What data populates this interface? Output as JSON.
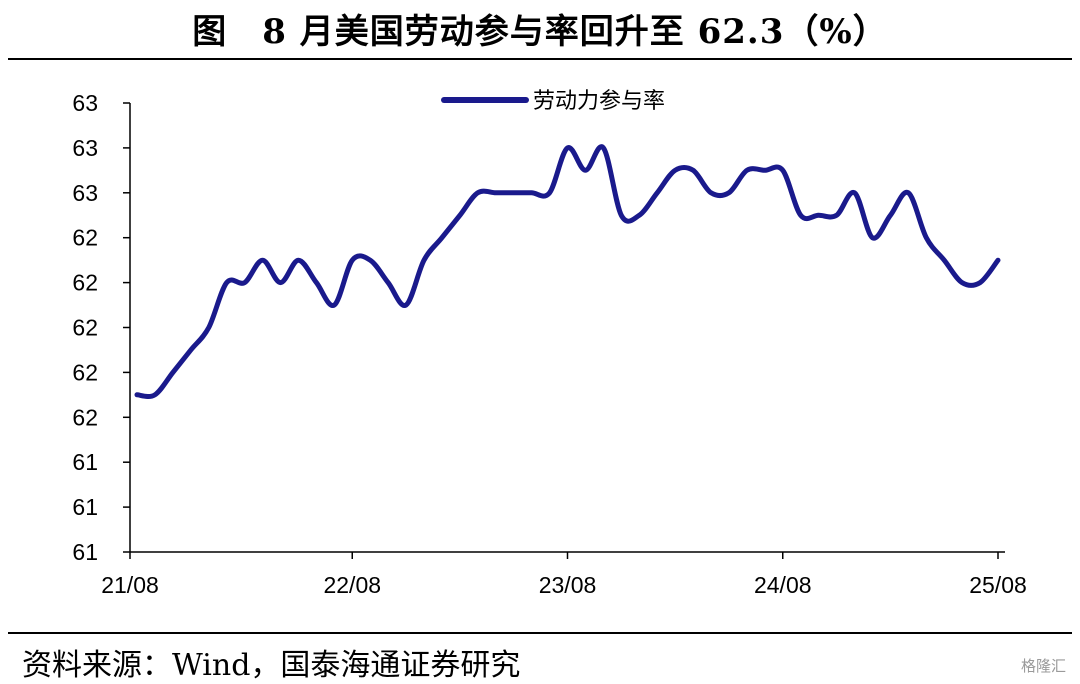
{
  "title": "图　8 月美国劳动参与率回升至 62.3（%）",
  "source": "资料来源：Wind，国泰海通证券研究",
  "watermark": "格隆汇",
  "colors": {
    "line": "#1a1a8c",
    "axis": "#000000"
  },
  "chart_data": {
    "type": "line",
    "legend_position": "top-center",
    "grid": false,
    "x_ticks": [
      "21/08",
      "22/08",
      "23/08",
      "24/08",
      "25/08"
    ],
    "y_ticks": [
      "63",
      "63",
      "63",
      "62",
      "62",
      "62",
      "62",
      "62",
      "61",
      "61",
      "61"
    ],
    "ylim": [
      61.0,
      63.0
    ],
    "series": [
      {
        "name": "劳动力参与率",
        "x": [
          "21/08",
          "21/09",
          "21/10",
          "21/11",
          "21/12",
          "22/01",
          "22/02",
          "22/03",
          "22/04",
          "22/05",
          "22/06",
          "22/07",
          "22/08",
          "22/09",
          "22/10",
          "22/11",
          "22/12",
          "23/01",
          "23/02",
          "23/03",
          "23/04",
          "23/05",
          "23/06",
          "23/07",
          "23/08",
          "23/09",
          "23/10",
          "23/11",
          "23/12",
          "24/01",
          "24/02",
          "24/03",
          "24/04",
          "24/05",
          "24/06",
          "24/07",
          "24/08",
          "24/09",
          "24/10",
          "24/11",
          "24/12",
          "25/01",
          "25/02",
          "25/03",
          "25/04",
          "25/05",
          "25/06",
          "25/07",
          "25/08"
        ],
        "values": [
          61.7,
          61.7,
          61.8,
          61.9,
          62.0,
          62.2,
          62.2,
          62.3,
          62.2,
          62.3,
          62.2,
          62.1,
          62.3,
          62.3,
          62.2,
          62.1,
          62.3,
          62.4,
          62.5,
          62.6,
          62.6,
          62.6,
          62.6,
          62.6,
          62.8,
          62.7,
          62.8,
          62.5,
          62.5,
          62.6,
          62.7,
          62.7,
          62.6,
          62.6,
          62.7,
          62.7,
          62.7,
          62.5,
          62.5,
          62.5,
          62.6,
          62.4,
          62.5,
          62.6,
          62.4,
          62.3,
          62.2,
          62.2,
          62.3
        ]
      }
    ]
  }
}
